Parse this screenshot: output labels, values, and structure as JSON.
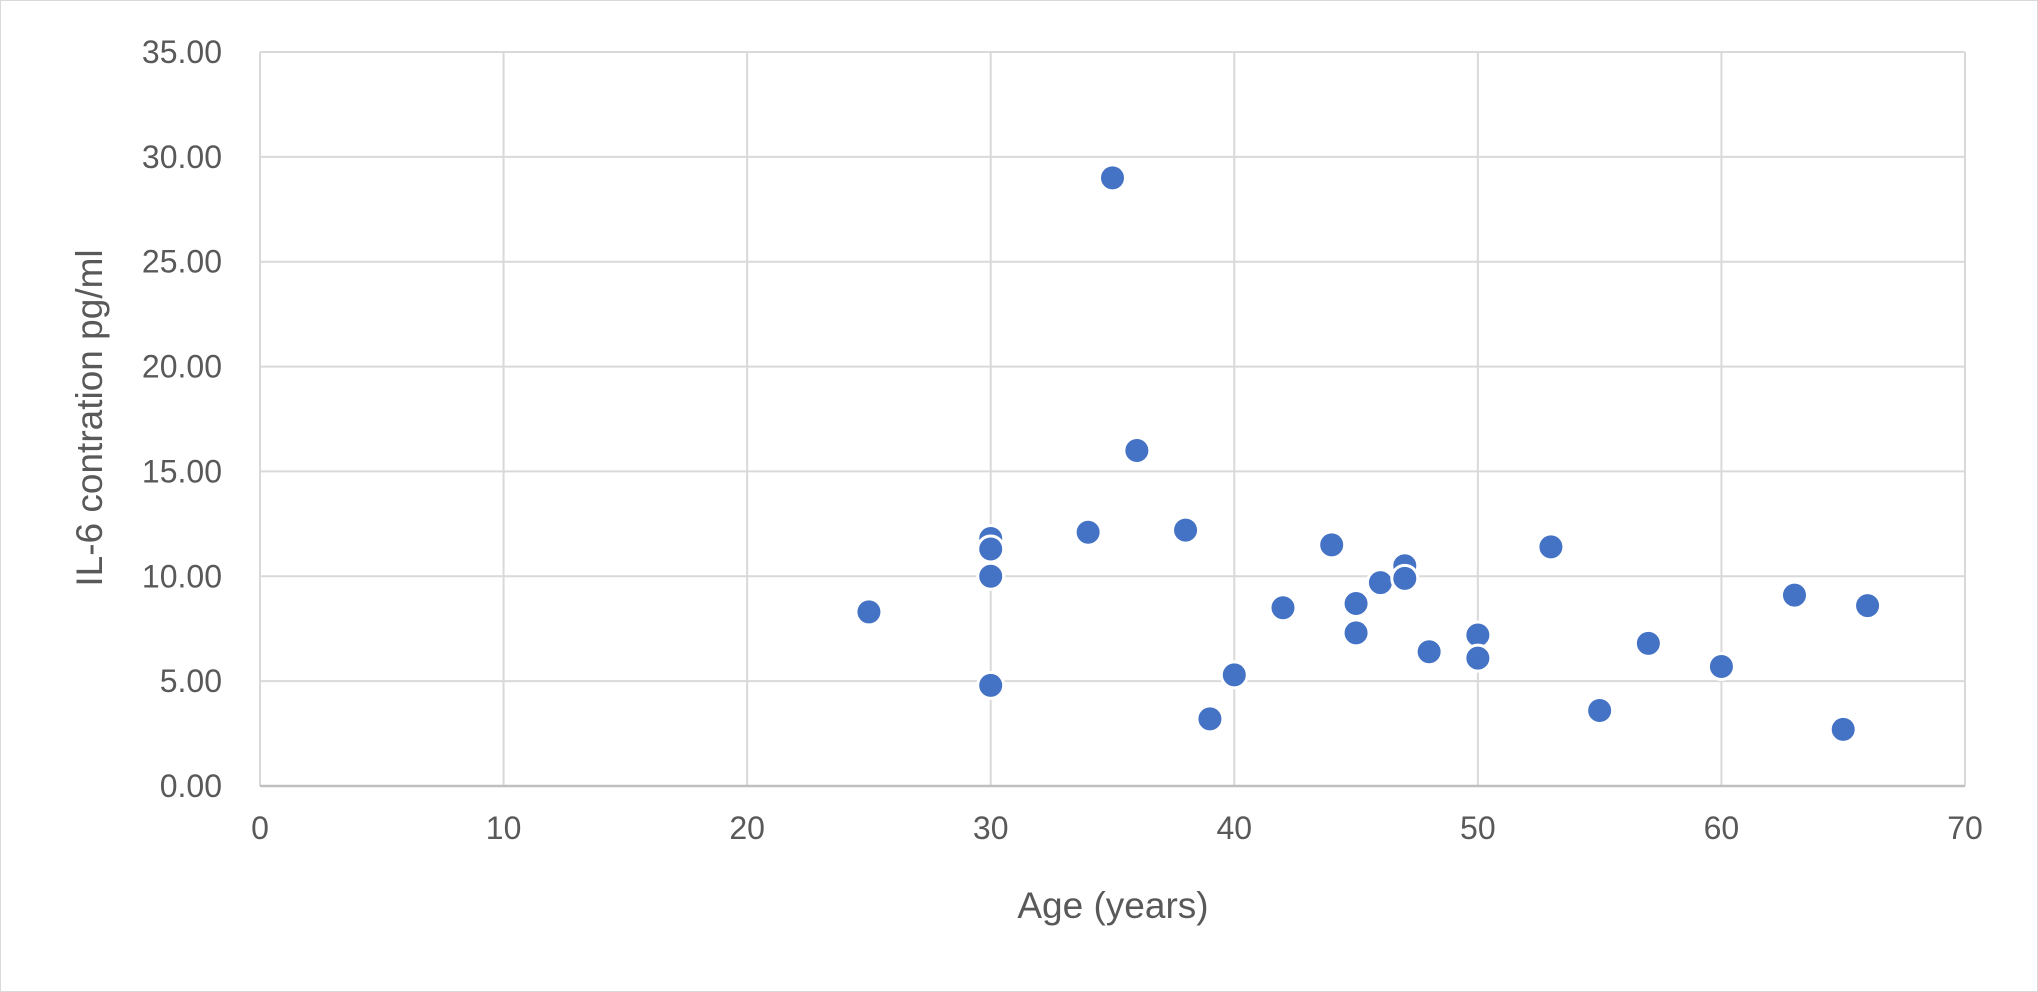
{
  "chart_data": {
    "type": "scatter",
    "title": "",
    "xlabel": "Age (years)",
    "ylabel": "IL-6 contration pg/ml",
    "xlim": [
      0,
      70
    ],
    "ylim": [
      0,
      35
    ],
    "x_ticks": [
      "0",
      "10",
      "20",
      "30",
      "40",
      "50",
      "60",
      "70"
    ],
    "y_ticks": [
      "0.00",
      "5.00",
      "10.00",
      "15.00",
      "20.00",
      "25.00",
      "30.00",
      "35.00"
    ],
    "grid": true,
    "legend": "none",
    "marker_color": "#4472C4",
    "series": [
      {
        "points": [
          {
            "x": 25,
            "y": 8.3
          },
          {
            "x": 30,
            "y": 11.8
          },
          {
            "x": 30,
            "y": 11.3
          },
          {
            "x": 30,
            "y": 10.0
          },
          {
            "x": 30,
            "y": 4.8
          },
          {
            "x": 34,
            "y": 12.1
          },
          {
            "x": 35,
            "y": 29.0
          },
          {
            "x": 36,
            "y": 16.0
          },
          {
            "x": 38,
            "y": 12.2
          },
          {
            "x": 39,
            "y": 3.2
          },
          {
            "x": 40,
            "y": 5.3
          },
          {
            "x": 42,
            "y": 8.5
          },
          {
            "x": 44,
            "y": 11.5
          },
          {
            "x": 45,
            "y": 8.7
          },
          {
            "x": 45,
            "y": 7.3
          },
          {
            "x": 46,
            "y": 9.7
          },
          {
            "x": 47,
            "y": 10.5
          },
          {
            "x": 47,
            "y": 9.9
          },
          {
            "x": 48,
            "y": 6.4
          },
          {
            "x": 50,
            "y": 7.2
          },
          {
            "x": 50,
            "y": 6.1
          },
          {
            "x": 53,
            "y": 11.4
          },
          {
            "x": 55,
            "y": 3.6
          },
          {
            "x": 57,
            "y": 6.8
          },
          {
            "x": 60,
            "y": 5.7
          },
          {
            "x": 63,
            "y": 9.1
          },
          {
            "x": 65,
            "y": 2.7
          },
          {
            "x": 66,
            "y": 8.6
          }
        ]
      }
    ]
  }
}
